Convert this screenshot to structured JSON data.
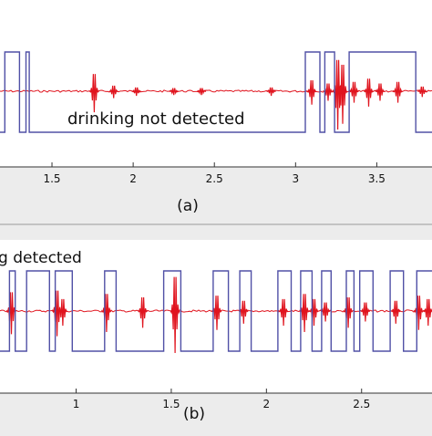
{
  "chart_data": [
    {
      "type": "line",
      "panel_label": "(a)",
      "annotation": "drinking not  detected",
      "xlim": [
        1.18,
        3.84
      ],
      "xticks": [
        1.5,
        2,
        2.5,
        3,
        3.5
      ],
      "xtick_labels": [
        "1.5",
        "2",
        "2.5",
        "3",
        "3.5"
      ],
      "colors": {
        "signal": "#e0141e",
        "detection": "#5050a6",
        "axis": "#333333"
      },
      "detection_steps": [
        [
          1.18,
          0
        ],
        [
          1.21,
          0
        ],
        [
          1.21,
          1
        ],
        [
          1.3,
          1
        ],
        [
          1.3,
          0
        ],
        [
          1.34,
          0
        ],
        [
          1.34,
          1
        ],
        [
          1.36,
          1
        ],
        [
          1.36,
          0
        ],
        [
          3.06,
          0
        ],
        [
          3.06,
          1
        ],
        [
          3.15,
          1
        ],
        [
          3.15,
          0
        ],
        [
          3.18,
          0
        ],
        [
          3.18,
          1
        ],
        [
          3.24,
          1
        ],
        [
          3.24,
          0
        ],
        [
          3.33,
          0
        ],
        [
          3.33,
          1
        ],
        [
          3.74,
          1
        ],
        [
          3.74,
          0
        ],
        [
          3.84,
          0
        ]
      ],
      "spikes": [
        {
          "x": 1.76,
          "amp": 0.55
        },
        {
          "x": 1.88,
          "amp": 0.18
        },
        {
          "x": 2.02,
          "amp": 0.12
        },
        {
          "x": 2.25,
          "amp": 0.1
        },
        {
          "x": 2.42,
          "amp": 0.1
        },
        {
          "x": 2.85,
          "amp": 0.12
        },
        {
          "x": 3.1,
          "amp": 0.35
        },
        {
          "x": 3.2,
          "amp": 0.25
        },
        {
          "x": 3.26,
          "amp": 1.0
        },
        {
          "x": 3.29,
          "amp": 0.85
        },
        {
          "x": 3.36,
          "amp": 0.3
        },
        {
          "x": 3.45,
          "amp": 0.4
        },
        {
          "x": 3.52,
          "amp": 0.25
        },
        {
          "x": 3.63,
          "amp": 0.3
        },
        {
          "x": 3.78,
          "amp": 0.15
        }
      ]
    },
    {
      "type": "line",
      "panel_label": "(b)",
      "annotation": "g detected",
      "xlim": [
        0.6,
        2.87
      ],
      "xticks": [
        1,
        1.5,
        2,
        2.5
      ],
      "xtick_labels": [
        "1",
        "1.5",
        "2",
        "2.5"
      ],
      "colors": {
        "signal": "#e0141e",
        "detection": "#5050a6",
        "axis": "#333333"
      },
      "detection_steps": [
        [
          0.6,
          0
        ],
        [
          0.65,
          0
        ],
        [
          0.65,
          1
        ],
        [
          0.68,
          1
        ],
        [
          0.68,
          0
        ],
        [
          0.74,
          0
        ],
        [
          0.74,
          1
        ],
        [
          0.86,
          1
        ],
        [
          0.86,
          0
        ],
        [
          0.89,
          0
        ],
        [
          0.89,
          1
        ],
        [
          0.98,
          1
        ],
        [
          0.98,
          0
        ],
        [
          1.15,
          0
        ],
        [
          1.15,
          1
        ],
        [
          1.21,
          1
        ],
        [
          1.21,
          0
        ],
        [
          1.46,
          0
        ],
        [
          1.46,
          1
        ],
        [
          1.55,
          1
        ],
        [
          1.55,
          0
        ],
        [
          1.72,
          0
        ],
        [
          1.72,
          1
        ],
        [
          1.8,
          1
        ],
        [
          1.8,
          0
        ],
        [
          1.86,
          0
        ],
        [
          1.86,
          1
        ],
        [
          1.92,
          1
        ],
        [
          1.92,
          0
        ],
        [
          2.06,
          0
        ],
        [
          2.06,
          1
        ],
        [
          2.13,
          1
        ],
        [
          2.13,
          0
        ],
        [
          2.18,
          0
        ],
        [
          2.18,
          1
        ],
        [
          2.24,
          1
        ],
        [
          2.24,
          0
        ],
        [
          2.29,
          0
        ],
        [
          2.29,
          1
        ],
        [
          2.34,
          1
        ],
        [
          2.34,
          0
        ],
        [
          2.42,
          0
        ],
        [
          2.42,
          1
        ],
        [
          2.46,
          1
        ],
        [
          2.46,
          0
        ],
        [
          2.49,
          0
        ],
        [
          2.49,
          1
        ],
        [
          2.56,
          1
        ],
        [
          2.56,
          0
        ],
        [
          2.65,
          0
        ],
        [
          2.65,
          1
        ],
        [
          2.72,
          1
        ],
        [
          2.72,
          0
        ],
        [
          2.79,
          0
        ],
        [
          2.79,
          1
        ],
        [
          2.87,
          1
        ]
      ],
      "spikes": [
        {
          "x": 0.66,
          "amp": 0.55
        },
        {
          "x": 0.9,
          "amp": 0.6
        },
        {
          "x": 0.93,
          "amp": 0.35
        },
        {
          "x": 1.16,
          "amp": 0.5
        },
        {
          "x": 1.35,
          "amp": 0.4
        },
        {
          "x": 1.52,
          "amp": 1.0
        },
        {
          "x": 1.74,
          "amp": 0.45
        },
        {
          "x": 1.88,
          "amp": 0.3
        },
        {
          "x": 2.09,
          "amp": 0.35
        },
        {
          "x": 2.2,
          "amp": 0.5
        },
        {
          "x": 2.25,
          "amp": 0.35
        },
        {
          "x": 2.31,
          "amp": 0.25
        },
        {
          "x": 2.43,
          "amp": 0.4
        },
        {
          "x": 2.52,
          "amp": 0.25
        },
        {
          "x": 2.68,
          "amp": 0.3
        },
        {
          "x": 2.8,
          "amp": 0.45
        },
        {
          "x": 2.85,
          "amp": 0.35
        }
      ]
    }
  ]
}
